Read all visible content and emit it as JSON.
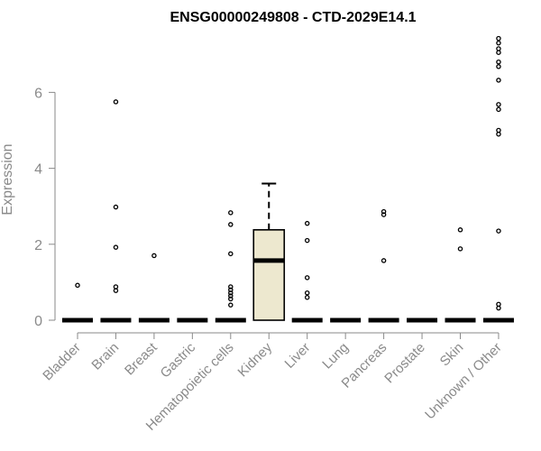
{
  "chart_data": {
    "type": "box",
    "title": "ENSG00000249808 - CTD-2029E14.1",
    "ylabel": "Expression",
    "xlabel": "",
    "ylim": [
      0,
      7.4
    ],
    "yticks": [
      0,
      2,
      4,
      6
    ],
    "ytick_labels": [
      "0",
      "2",
      "4",
      "6"
    ],
    "categories": [
      "Bladder",
      "Brain",
      "Breast",
      "Gastric",
      "Hematopoietic cells",
      "Kidney",
      "Liver",
      "Lung",
      "Pancreas",
      "Prostate",
      "Skin",
      "Unknown / Other"
    ],
    "box_fill": "#ede8cf",
    "boxes": [
      {
        "category": "Bladder",
        "q1": 0,
        "median": 0,
        "q3": 0,
        "whisker_low": 0,
        "whisker_high": 0,
        "outliers": [
          0.92
        ]
      },
      {
        "category": "Brain",
        "q1": 0,
        "median": 0,
        "q3": 0,
        "whisker_low": 0,
        "whisker_high": 0,
        "outliers": [
          5.75,
          2.98,
          1.92,
          0.88,
          0.78
        ]
      },
      {
        "category": "Breast",
        "q1": 0,
        "median": 0,
        "q3": 0,
        "whisker_low": 0,
        "whisker_high": 0,
        "outliers": [
          1.7
        ]
      },
      {
        "category": "Gastric",
        "q1": 0,
        "median": 0,
        "q3": 0,
        "whisker_low": 0,
        "whisker_high": 0,
        "outliers": []
      },
      {
        "category": "Hematopoietic cells",
        "q1": 0,
        "median": 0,
        "q3": 0,
        "whisker_low": 0,
        "whisker_high": 0,
        "outliers": [
          2.83,
          2.52,
          1.75,
          0.88,
          0.8,
          0.72,
          0.64,
          0.56,
          0.4
        ]
      },
      {
        "category": "Kidney",
        "q1": 0,
        "median": 1.57,
        "q3": 2.38,
        "whisker_low": 0,
        "whisker_high": 3.6,
        "outliers": []
      },
      {
        "category": "Liver",
        "q1": 0,
        "median": 0,
        "q3": 0,
        "whisker_low": 0,
        "whisker_high": 0,
        "outliers": [
          2.55,
          2.1,
          1.12,
          0.72,
          0.6
        ]
      },
      {
        "category": "Lung",
        "q1": 0,
        "median": 0,
        "q3": 0,
        "whisker_low": 0,
        "whisker_high": 0,
        "outliers": []
      },
      {
        "category": "Pancreas",
        "q1": 0,
        "median": 0,
        "q3": 0,
        "whisker_low": 0,
        "whisker_high": 0,
        "outliers": [
          2.86,
          2.78,
          1.57
        ]
      },
      {
        "category": "Prostate",
        "q1": 0,
        "median": 0,
        "q3": 0,
        "whisker_low": 0,
        "whisker_high": 0,
        "outliers": []
      },
      {
        "category": "Skin",
        "q1": 0,
        "median": 0,
        "q3": 0,
        "whisker_low": 0,
        "whisker_high": 0,
        "outliers": [
          2.38,
          1.88
        ]
      },
      {
        "category": "Unknown / Other",
        "q1": 0,
        "median": 0,
        "q3": 0,
        "whisker_low": 0,
        "whisker_high": 0,
        "outliers": [
          7.42,
          7.3,
          7.15,
          7.05,
          6.8,
          6.68,
          6.32,
          5.68,
          5.55,
          5.0,
          4.9,
          2.35,
          0.42,
          0.32
        ]
      }
    ],
    "grid": false,
    "legend": "none"
  }
}
